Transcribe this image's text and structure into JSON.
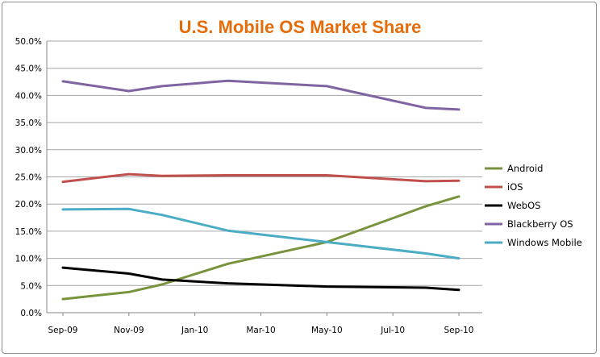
{
  "chart_data": {
    "type": "line",
    "title": "U.S. Mobile OS Market Share",
    "xlabel": "",
    "ylabel": "",
    "ylim": [
      0,
      50
    ],
    "y_ticks": [
      "0.0%",
      "5.0%",
      "10.0%",
      "15.0%",
      "20.0%",
      "25.0%",
      "30.0%",
      "35.0%",
      "40.0%",
      "45.0%",
      "50.0%"
    ],
    "x_tick_labels": [
      "Sep-09",
      "Nov-09",
      "Jan-10",
      "Mar-10",
      "May-10",
      "Jul-10",
      "Sep-10"
    ],
    "x": [
      "Sep-09",
      "Nov-09",
      "Dec-09",
      "Feb-10",
      "May-10",
      "Aug-10",
      "Sep-10"
    ],
    "grid": "horizontal",
    "legend_position": "right",
    "series": [
      {
        "name": "Android",
        "color": "#77933c",
        "values": [
          2.5,
          3.8,
          5.2,
          9.0,
          13.0,
          19.6,
          21.4
        ]
      },
      {
        "name": "iOS",
        "color": "#c0504d",
        "values": [
          24.1,
          25.5,
          25.2,
          25.3,
          25.3,
          24.2,
          24.3
        ]
      },
      {
        "name": "WebOS",
        "color": "#000000",
        "values": [
          8.3,
          7.2,
          6.1,
          5.4,
          4.8,
          4.6,
          4.2
        ]
      },
      {
        "name": "Blackberry OS",
        "color": "#8064a2",
        "values": [
          42.6,
          40.8,
          41.7,
          42.7,
          41.7,
          37.7,
          37.4
        ]
      },
      {
        "name": "Windows Mobile",
        "color": "#4bacc6",
        "values": [
          19.0,
          19.1,
          18.0,
          15.1,
          13.0,
          10.9,
          10.0
        ]
      }
    ]
  }
}
